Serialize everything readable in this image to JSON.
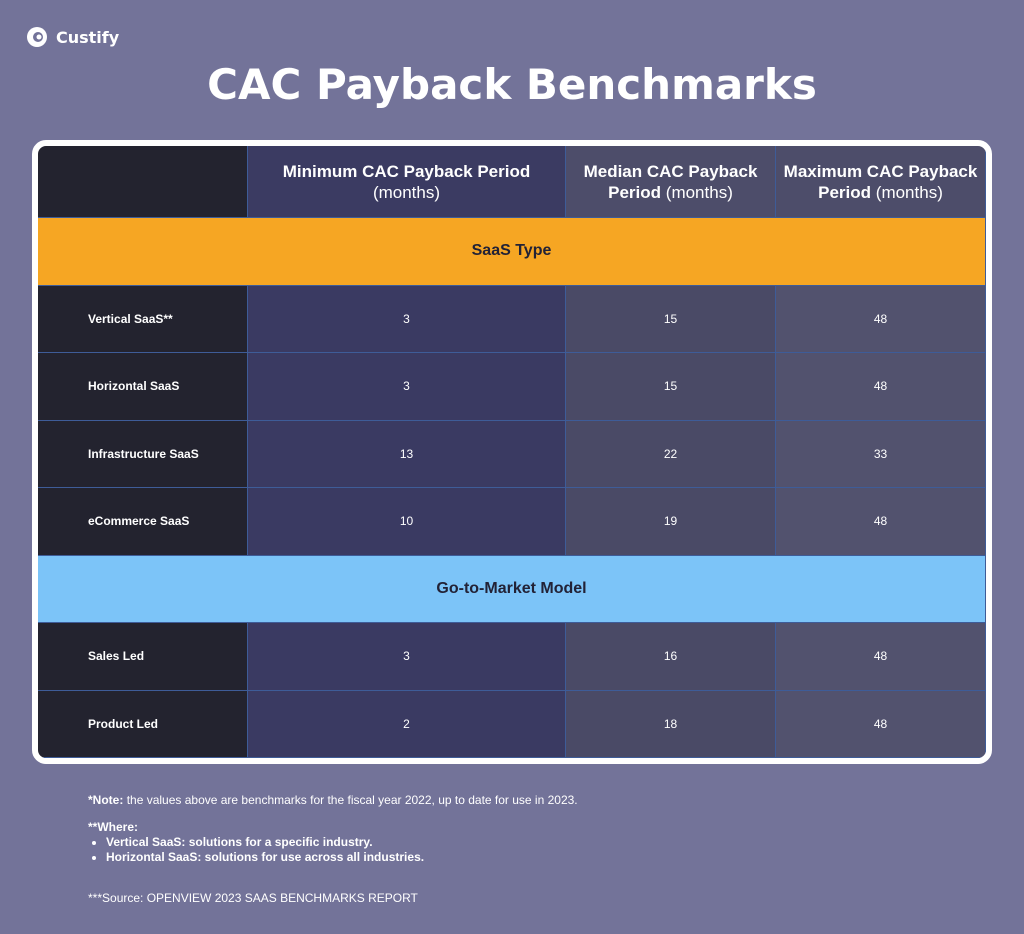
{
  "brand": "Custify",
  "title": "CAC Payback Benchmarks",
  "table": {
    "header": [
      {
        "bold": "Minimum CAC Payback Period",
        "light": "(months)"
      },
      {
        "bold": "Median CAC Payback Period",
        "light": "(months)"
      },
      {
        "bold": "Maximum CAC Payback Period",
        "light": "(months)"
      }
    ],
    "sections": [
      {
        "title": "SaaS Type",
        "rows": [
          {
            "label": "Vertical SaaS**",
            "values": [
              3,
              15,
              48
            ]
          },
          {
            "label": "Horizontal SaaS",
            "values": [
              3,
              15,
              48
            ]
          },
          {
            "label": "Infrastructure SaaS",
            "values": [
              13,
              22,
              33
            ]
          },
          {
            "label": "eCommerce SaaS",
            "values": [
              10,
              19,
              48
            ]
          }
        ]
      },
      {
        "title": "Go-to-Market Model",
        "rows": [
          {
            "label": "Sales Led",
            "values": [
              3,
              16,
              48
            ]
          },
          {
            "label": "Product Led",
            "values": [
              2,
              18,
              48
            ]
          }
        ]
      }
    ]
  },
  "notes": {
    "note_label": "*Note:",
    "note_text": "the values above are benchmarks for the fiscal year 2022, up to date for use in 2023.",
    "where_label": "**Where:",
    "bullets": [
      "Vertical SaaS: solutions for a specific industry.",
      "Horizontal SaaS: solutions for use across all industries."
    ],
    "source": "***Source: OPENVIEW 2023 SAAS BENCHMARKS REPORT"
  }
}
